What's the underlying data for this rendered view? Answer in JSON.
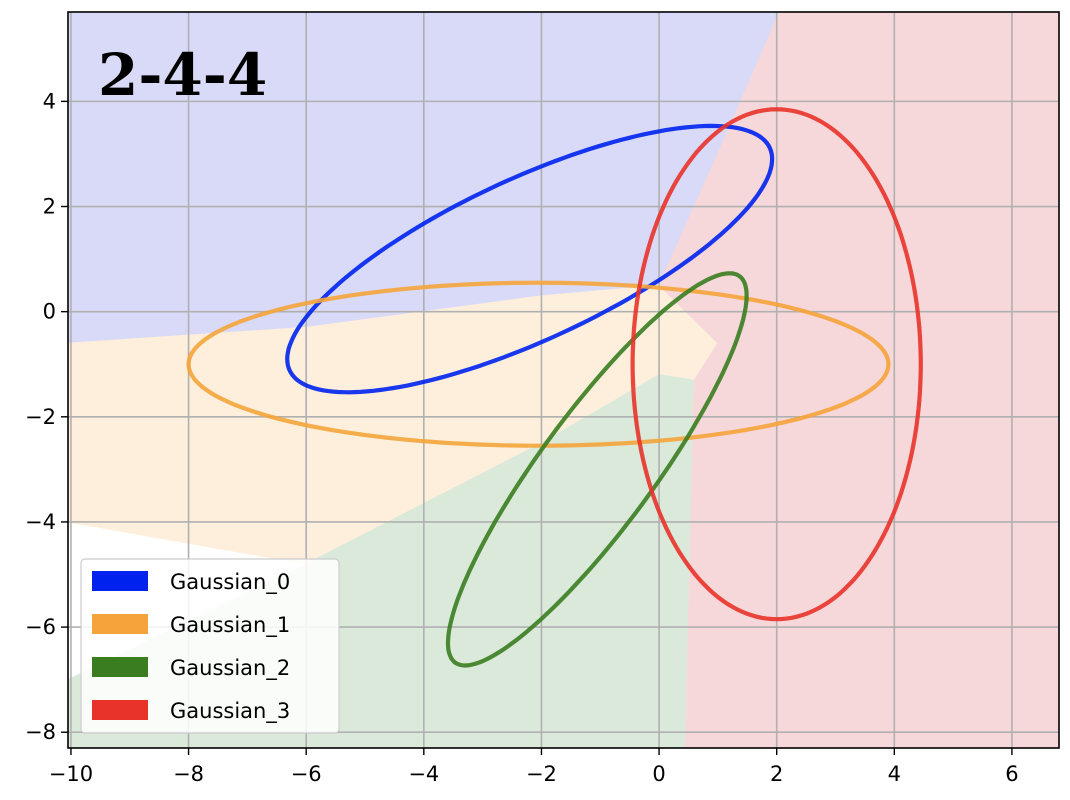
{
  "chart_data": {
    "type": "scatter",
    "title": "2-4-4",
    "xlabel": "",
    "ylabel": "",
    "xlim": [
      -10.05,
      6.8
    ],
    "ylim": [
      -8.3,
      5.7
    ],
    "grid": true,
    "xticks": [
      -10,
      -8,
      -6,
      -4,
      -2,
      0,
      2,
      4,
      6
    ],
    "yticks": [
      -8,
      -6,
      -4,
      -2,
      0,
      2,
      4
    ],
    "xtick_labels": [
      "−10",
      "−8",
      "−6",
      "−4",
      "−2",
      "0",
      "2",
      "4",
      "6"
    ],
    "ytick_labels": [
      "−8",
      "−6",
      "−4",
      "−2",
      "0",
      "2",
      "4"
    ],
    "legend_placement": "lower-left",
    "series": [
      {
        "name": "Gaussian_0",
        "color": "#0022ee",
        "region_color": "#d9daf8",
        "center": [
          -2.2,
          1.0
        ],
        "semi_axes": [
          4.6,
          1.5
        ],
        "angle_deg": 28,
        "region": [
          [
            -10.05,
            5.7
          ],
          [
            2.05,
            5.7
          ],
          [
            1.0,
            3.0
          ],
          [
            0.0,
            0.5
          ],
          [
            -2.0,
            0.3
          ],
          [
            -6.0,
            -0.3
          ],
          [
            -10.05,
            -0.6
          ]
        ]
      },
      {
        "name": "Gaussian_1",
        "color": "#f4a43a",
        "region_color": "#fdefdb",
        "center": [
          -2.05,
          -1.0
        ],
        "semi_axes": [
          5.95,
          1.55
        ],
        "angle_deg": 0,
        "region": [
          [
            -10.05,
            -0.6
          ],
          [
            -6.0,
            -0.3
          ],
          [
            -2.0,
            0.3
          ],
          [
            0.0,
            0.5
          ],
          [
            1.0,
            -0.6
          ],
          [
            0.6,
            -1.3
          ],
          [
            0.0,
            -1.2
          ],
          [
            -2.0,
            -2.5
          ],
          [
            -6.0,
            -4.8
          ],
          [
            -10.05,
            -4.0
          ]
        ]
      },
      {
        "name": "Gaussian_2",
        "color": "#3a7d20",
        "region_color": "#dbe9da",
        "center": [
          -1.05,
          -3.0
        ],
        "semi_axes": [
          4.4,
          1.0
        ],
        "angle_deg": 57,
        "region": [
          [
            -10.05,
            -7.0
          ],
          [
            -6.0,
            -4.8
          ],
          [
            -2.0,
            -2.5
          ],
          [
            0.0,
            -1.2
          ],
          [
            0.6,
            -1.3
          ],
          [
            0.45,
            -8.3
          ],
          [
            -10.05,
            -8.3
          ]
        ]
      },
      {
        "name": "Gaussian_3",
        "color": "#e8332a",
        "region_color": "#f7d8da",
        "center": [
          2.0,
          -1.0
        ],
        "semi_axes": [
          2.45,
          4.85
        ],
        "angle_deg": 0,
        "region": [
          [
            2.05,
            5.7
          ],
          [
            6.8,
            5.7
          ],
          [
            6.8,
            -8.3
          ],
          [
            0.45,
            -8.3
          ],
          [
            0.6,
            -1.3
          ],
          [
            1.0,
            -0.6
          ],
          [
            0.0,
            0.5
          ],
          [
            1.0,
            3.0
          ]
        ]
      }
    ]
  }
}
